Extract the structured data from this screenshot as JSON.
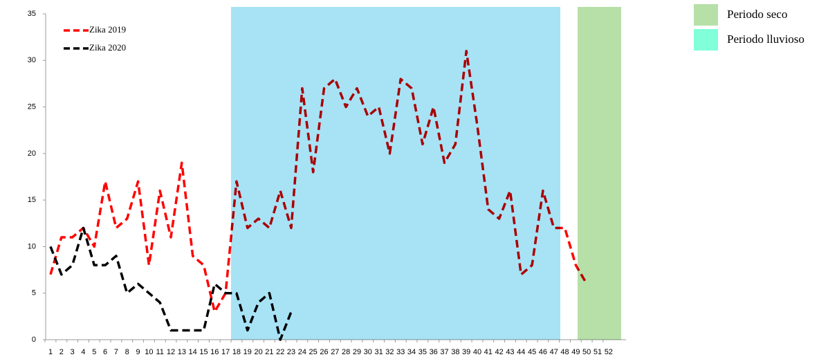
{
  "chart_data": {
    "type": "line",
    "categories": [
      "1",
      "2",
      "3",
      "4",
      "5",
      "6",
      "7",
      "8",
      "9",
      "10",
      "11",
      "12",
      "13",
      "14",
      "15",
      "16",
      "17",
      "18",
      "19",
      "20",
      "21",
      "22",
      "23",
      "24",
      "25",
      "26",
      "27",
      "28",
      "29",
      "30",
      "31",
      "32",
      "33",
      "34",
      "35",
      "36",
      "37",
      "38",
      "39",
      "40",
      "41",
      "42",
      "43",
      "44",
      "45",
      "46",
      "47",
      "48",
      "49",
      "50",
      "51",
      "52"
    ],
    "series": [
      {
        "name": "Zika 2019",
        "color": "#ff0000",
        "values": [
          7,
          11,
          11,
          12,
          10,
          17,
          12,
          13,
          17,
          8,
          16,
          11,
          19,
          9,
          8,
          3,
          5,
          17,
          12,
          13,
          12,
          16,
          12,
          27,
          18,
          27,
          28,
          25,
          27,
          24,
          25,
          20,
          28,
          27,
          21,
          25,
          19,
          21,
          31,
          23,
          14,
          13,
          16,
          7,
          8,
          16,
          12,
          12,
          8,
          6,
          null,
          null
        ]
      },
      {
        "name": "Zika 2020",
        "color": "#000000",
        "values": [
          10,
          7,
          8,
          12,
          8,
          8,
          9,
          5,
          6,
          5,
          4,
          1,
          1,
          1,
          1,
          6,
          5,
          5,
          1,
          4,
          5,
          0,
          3,
          null,
          null,
          null,
          null,
          null,
          null,
          null,
          null,
          null,
          null,
          null,
          null,
          null,
          null,
          null,
          null,
          null,
          null,
          null,
          null,
          null,
          null,
          null,
          null,
          null,
          null,
          null,
          null,
          null
        ]
      }
    ],
    "ylim": [
      0,
      35
    ],
    "yticks": [
      0,
      5,
      10,
      15,
      20,
      25,
      30,
      35
    ],
    "grid": false,
    "periods": [
      {
        "name": "Periodo seco",
        "color": "#b6e0a8"
      },
      {
        "name": "Periodo lluvioso",
        "color": "#80ffd8"
      }
    ]
  }
}
